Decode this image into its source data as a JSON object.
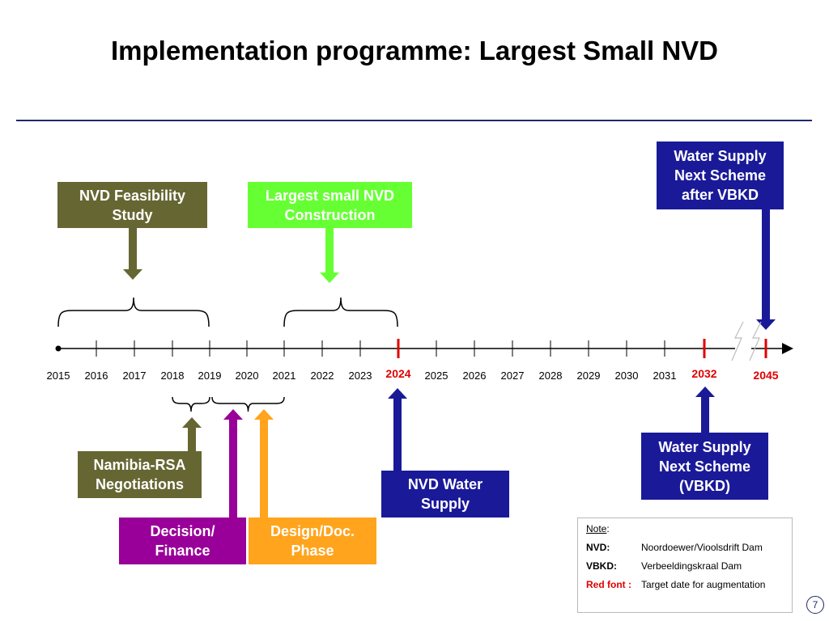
{
  "title": "Implementation programme: Largest Small NVD",
  "colors": {
    "olive": "#666633",
    "green": "#66ff33",
    "navy": "#1a1a99",
    "purple": "#990099",
    "orange": "#ffa41c",
    "red": "#e00000",
    "axis": "#000000"
  },
  "timeline": {
    "years": [
      "2015",
      "2016",
      "2017",
      "2018",
      "2019",
      "2020",
      "2021",
      "2022",
      "2023",
      "2024",
      "2025",
      "2026",
      "2027",
      "2028",
      "2029",
      "2030",
      "2031",
      "2032",
      "2045"
    ],
    "highlighted_years": [
      "2024",
      "2032",
      "2045"
    ]
  },
  "boxes": {
    "feasibility": "NVD Feasibility\nStudy",
    "construction": "Largest small NVD\nConstruction",
    "next_scheme": "Water Supply\nNext Scheme\nafter VBKD",
    "negotiations": "Namibia-RSA\nNegotiations",
    "decision": "Decision/\nFinance",
    "design": "Design/Doc.\nPhase",
    "nvd_supply": "NVD Water\nSupply",
    "vbkd_supply": "Water Supply\nNext Scheme\n(VBKD)"
  },
  "note": {
    "heading": "Note",
    "items": [
      {
        "key": "NVD",
        "value": "Noordoewer/Vioolsdrift Dam"
      },
      {
        "key": "VBKD",
        "value": "Verbeeldingskraal Dam"
      },
      {
        "key": "Red font :",
        "value": "Target date for augmentation"
      }
    ]
  },
  "page_number": "7"
}
